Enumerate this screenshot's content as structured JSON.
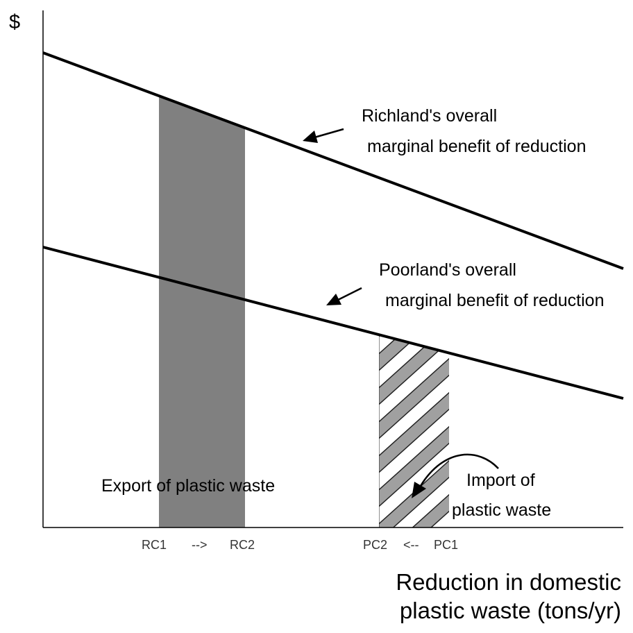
{
  "y_axis_label": "$",
  "x_axis_label": [
    "Reduction in domestic",
    "plastic waste (tons/yr)"
  ],
  "richland_label": [
    "Richland's overall",
    "marginal benefit of reduction"
  ],
  "poorland_label": [
    "Poorland's overall",
    "marginal benefit of reduction"
  ],
  "export_label": "Export of plastic waste",
  "import_label": [
    "Import of",
    "plastic waste"
  ],
  "ticks": {
    "rc1": "RC1",
    "rc_arrow": "-->",
    "rc2": "RC2",
    "pc2": "PC2",
    "pc_arrow": "<--",
    "pc1": "PC1"
  },
  "colors": {
    "export_fill": "#808080",
    "import_hatch": "#a0a0a0",
    "lines": "#000000"
  }
}
